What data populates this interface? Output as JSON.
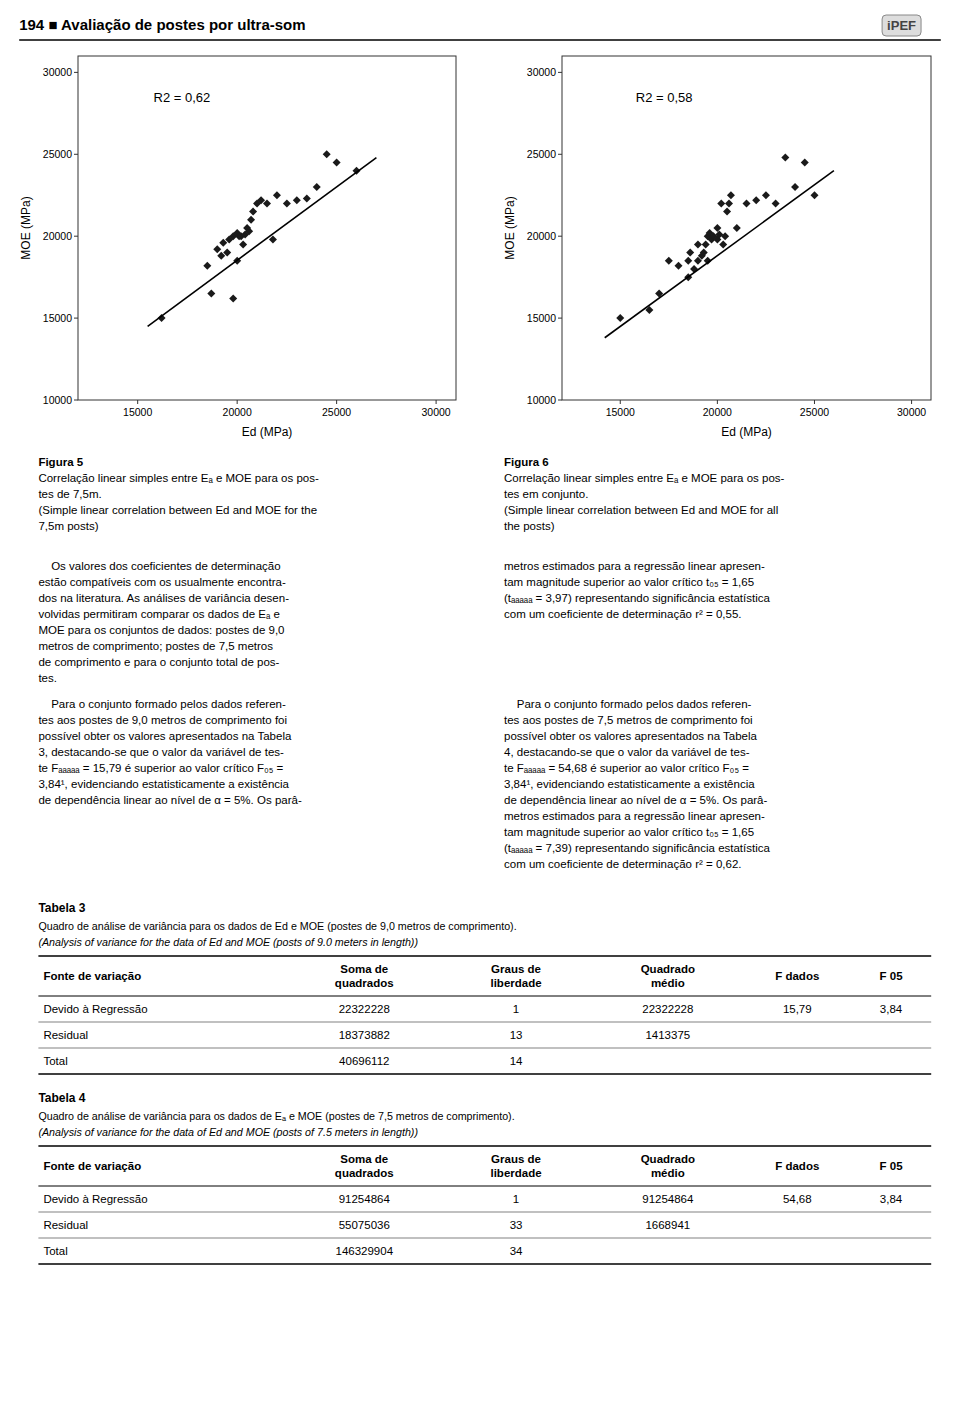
{
  "chart_data": [
    {
      "type": "scatter",
      "x_label": "Ed (MPa)",
      "y_label": "MOE (MPa)",
      "annotations": [
        "R2 = 0,62"
      ],
      "xlim": [
        12000,
        31000
      ],
      "ylim": [
        10000,
        31000
      ],
      "xticks": [
        15000,
        20000,
        25000,
        30000
      ],
      "yticks": [
        10000,
        15000,
        20000,
        25000,
        30000
      ],
      "grid": false,
      "series": [
        {
          "type": "scatter",
          "marker": "diamond",
          "color": "#1a1a1a",
          "x": [
            16200,
            18500,
            18700,
            19000,
            19200,
            19300,
            19500,
            19600,
            19800,
            19800,
            20000,
            20000,
            20100,
            20200,
            20300,
            20400,
            20500,
            20600,
            20700,
            20800,
            21000,
            21200,
            21500,
            21800,
            22000,
            22500,
            23000,
            23500,
            24000,
            24500,
            25000,
            26000
          ],
          "values": [
            15000,
            18200,
            16500,
            19200,
            18800,
            19600,
            19000,
            19800,
            16200,
            20000,
            18500,
            20200,
            20000,
            20000,
            19500,
            20100,
            20500,
            20300,
            21000,
            21500,
            22000,
            22200,
            22000,
            19800,
            22500,
            22000,
            22200,
            22300,
            23000,
            25000,
            24500,
            24000
          ]
        },
        {
          "type": "line",
          "line_style": "solid",
          "color": "#000000",
          "x": [
            15500,
            27000
          ],
          "values": [
            14500,
            24800
          ]
        }
      ]
    },
    {
      "type": "scatter",
      "x_label": "Ed (MPa)",
      "y_label": "MOE (MPa)",
      "annotations": [
        "R2 = 0,58"
      ],
      "xlim": [
        12000,
        31000
      ],
      "ylim": [
        10000,
        31000
      ],
      "xticks": [
        15000,
        20000,
        25000,
        30000
      ],
      "yticks": [
        10000,
        15000,
        20000,
        25000,
        30000
      ],
      "grid": false,
      "series": [
        {
          "type": "scatter",
          "marker": "diamond",
          "color": "#1a1a1a",
          "x": [
            15000,
            16500,
            17000,
            17500,
            18000,
            18500,
            18500,
            18600,
            18800,
            19000,
            19000,
            19200,
            19300,
            19400,
            19500,
            19500,
            19600,
            19700,
            19800,
            20000,
            20000,
            20100,
            20200,
            20300,
            20400,
            20500,
            20600,
            20700,
            21000,
            21500,
            22000,
            22500,
            23000,
            23500,
            24000,
            24500,
            25000
          ],
          "values": [
            15000,
            15500,
            16500,
            18500,
            18200,
            18500,
            17500,
            19000,
            18000,
            18500,
            19500,
            18800,
            19000,
            19500,
            20000,
            18500,
            20200,
            19800,
            20000,
            19800,
            20500,
            20100,
            22000,
            19500,
            20000,
            21500,
            22000,
            22500,
            20500,
            22000,
            22200,
            22500,
            22000,
            24800,
            23000,
            24500,
            22500
          ]
        },
        {
          "type": "line",
          "line_style": "solid",
          "color": "#000000",
          "x": [
            14200,
            26000
          ],
          "values": [
            13800,
            24000
          ]
        }
      ]
    }
  ],
  "page": {
    "header": "194 ■ Avaliação de postes por ultra-som",
    "logo": "iPEF",
    "captions": [
      {
        "label": "Figura 5",
        "lines": [
          "Correlação linear simples entre Eₐ e MOE para os pos-",
          "tes de 7,5m.",
          "(Simple linear correlation between Ed and MOE for the",
          "7,5m posts)"
        ]
      },
      {
        "label": "Figura 6",
        "lines": [
          "Correlação linear simples entre Eₐ e MOE para os pos-",
          "tes em conjunto.",
          "(Simple linear correlation between Ed and MOE for all",
          "the posts)"
        ]
      }
    ],
    "text_blocks": [
      [
        "    Os valores dos coeficientes de determinação",
        "estão compatíveis com os usualmente encontra-",
        "dos na literatura. As análises de variância desen-",
        "volvidas permitiram comparar os dados de Eₐ e",
        "MOE para os conjuntos de dados: postes de 9,0",
        "metros de comprimento; postes de 7,5 metros",
        "de comprimento e para o conjunto total de pos-",
        "tes."
      ],
      [
        "metros estimados para a regressão linear apresen-",
        "tam magnitude superior ao valor crítico t₀₅ = 1,65",
        "(tₐₐₐₐₐ = 3,97) representando significância estatística",
        "com um coeficiente de determinação r² = 0,55."
      ],
      [
        "    Para o conjunto formado pelos dados referen-",
        "tes aos postes de 9,0 metros de comprimento foi",
        "possível obter os valores apresentados na Tabela",
        "3, destacando-se que o valor da variável de tes-",
        "te Fₐₐₐₐₐ = 15,79 é superior ao valor crítico F₀₅ =",
        "3,84¹, evidenciando estatisticamente a existência",
        "de dependência linear ao nível de α = 5%. Os parâ-"
      ],
      [
        "    Para o conjunto formado pelos dados referen-",
        "tes aos postes de 7,5 metros de comprimento foi",
        "possível obter os valores apresentados na Tabela",
        "4, destacando-se que o valor da variável de tes-",
        "te Fₐₐₐₐₐ = 54,68 é superior ao valor crítico F₀₅ =",
        "3,84¹, evidenciando estatisticamente a existência",
        "de dependência linear ao nível de α = 5%. Os parâ-",
        "metros estimados para a regressão linear apresen-",
        "tam magnitude superior ao valor crítico t₀₅ = 1,65",
        "(tₐₐₐₐₐ = 7,39) representando significância estatística",
        "com um coeficiente de determinação r² = 0,62."
      ]
    ],
    "tables": [
      {
        "title": "Tabela 3",
        "subtitle": "Quadro de análise de variância para os dados de Ed e MOE (postes de 9,0 metros de comprimento).",
        "subtitle_en": "(Analysis of variance for the data of Ed and MOE (posts of 9.0 meters in length))",
        "columns": [
          "Fonte de variação",
          "Soma de\nquadrados",
          "Graus de\nliberdade",
          "Quadrado\nmédio",
          "F dados",
          "F 05"
        ],
        "rows": [
          [
            "Devido à Regressão",
            "22322228",
            "1",
            "22322228",
            "15,79",
            "3,84"
          ],
          [
            "Residual",
            "18373882",
            "13",
            "1413375",
            null,
            null
          ],
          [
            "Total",
            "40696112",
            "14",
            null,
            null,
            null
          ]
        ]
      },
      {
        "title": "Tabela 4",
        "subtitle": "Quadro de análise de variância para os dados de Eₐ e MOE (postes de 7,5 metros de comprimento).",
        "subtitle_en": "(Analysis of variance for the data of Ed and MOE (posts of 7.5 meters in length))",
        "columns": [
          "Fonte de variação",
          "Soma de\nquadrados",
          "Graus de\nliberdade",
          "Quadrado\nmédio",
          "F dados",
          "F 05"
        ],
        "rows": [
          [
            "Devido à Regressão",
            "91254864",
            "1",
            "91254864",
            "54,68",
            "3,84"
          ],
          [
            "Residual",
            "55075036",
            "33",
            "1668941",
            null,
            null
          ],
          [
            "Total",
            "146329904",
            "34",
            null,
            null,
            null
          ]
        ]
      }
    ]
  }
}
